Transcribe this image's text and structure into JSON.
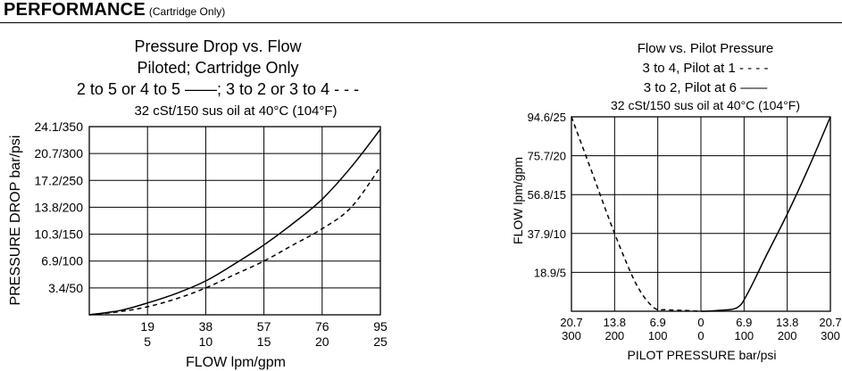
{
  "header": {
    "title": "PERFORMANCE",
    "subtitle": "(Cartridge Only)"
  },
  "chart_data": [
    {
      "type": "line",
      "title_lines": [
        "Pressure Drop vs. Flow",
        "Piloted; Cartridge Only",
        "2 to 5 or 4 to 5 ——; 3 to 2 or 3 to 4 - - -"
      ],
      "subtitle": "32 cSt/150 sus oil at 40°C (104°F)",
      "xlabel": "FLOW lpm/gpm",
      "ylabel": "PRESSURE DROP bar/psi",
      "x_ticks_primary": [
        "19",
        "38",
        "57",
        "76",
        "95"
      ],
      "x_ticks_secondary": [
        "5",
        "10",
        "15",
        "20",
        "25"
      ],
      "x_tick_values": [
        19,
        38,
        57,
        76,
        95
      ],
      "xlim": [
        0,
        95
      ],
      "y_ticks": [
        "24.1/350",
        "20.7/300",
        "17.2/250",
        "13.8/200",
        "10.3/150",
        "6.9/100",
        "3.4/50"
      ],
      "y_tick_values": [
        350,
        300,
        250,
        200,
        150,
        100,
        50
      ],
      "ylim": [
        0,
        350
      ],
      "grid": true,
      "series": [
        {
          "name": "2 to 5 or 4 to 5",
          "style": "solid",
          "x": [
            0,
            10,
            19,
            28.5,
            38,
            47.5,
            57,
            66.5,
            76,
            85.5,
            95
          ],
          "y": [
            0,
            8,
            22,
            40,
            63,
            95,
            130,
            170,
            215,
            275,
            345
          ]
        },
        {
          "name": "3 to 2 or 3 to 4",
          "style": "dashed",
          "x": [
            0,
            10,
            19,
            28.5,
            38,
            47.5,
            57,
            66.5,
            76,
            85.5,
            95
          ],
          "y": [
            0,
            6,
            15,
            30,
            50,
            75,
            100,
            130,
            160,
            200,
            275
          ]
        }
      ]
    },
    {
      "type": "line",
      "title_lines": [
        "Flow vs. Pilot Pressure",
        "3 to 4, Pilot at 1 - - - -",
        "3 to 2, Pilot at 6 ——"
      ],
      "subtitle": "32 cSt/150 sus oil at 40°C (104°F)",
      "xlabel": "PILOT PRESSURE bar/psi",
      "ylabel": "FLOW lpm/gpm",
      "x_ticks_primary": [
        "20.7",
        "13.8",
        "6.9",
        "0",
        "6.9",
        "13.8",
        "20.7"
      ],
      "x_ticks_secondary": [
        "300",
        "200",
        "100",
        "0",
        "100",
        "200",
        "300"
      ],
      "x_tick_values": [
        -300,
        -200,
        -100,
        0,
        100,
        200,
        300
      ],
      "xlim": [
        -300,
        300
      ],
      "y_ticks": [
        "94.6/25",
        "75.7/20",
        "56.8/15",
        "37.9/10",
        "18.9/5"
      ],
      "y_tick_values": [
        25,
        20,
        15,
        10,
        5
      ],
      "ylim": [
        0,
        25
      ],
      "grid": true,
      "series": [
        {
          "name": "3 to 4, Pilot at 1",
          "style": "dashed",
          "x": [
            -300,
            -250,
            -200,
            -150,
            -110,
            -80,
            -40,
            0
          ],
          "y": [
            25,
            17.5,
            10,
            3.5,
            0.5,
            0.2,
            0.1,
            0
          ]
        },
        {
          "name": "3 to 2, Pilot at 6",
          "style": "solid",
          "x": [
            0,
            40,
            85,
            110,
            150,
            200,
            250,
            300
          ],
          "y": [
            0,
            0.1,
            0.5,
            2.5,
            7,
            12.5,
            18.5,
            25
          ]
        }
      ]
    }
  ]
}
